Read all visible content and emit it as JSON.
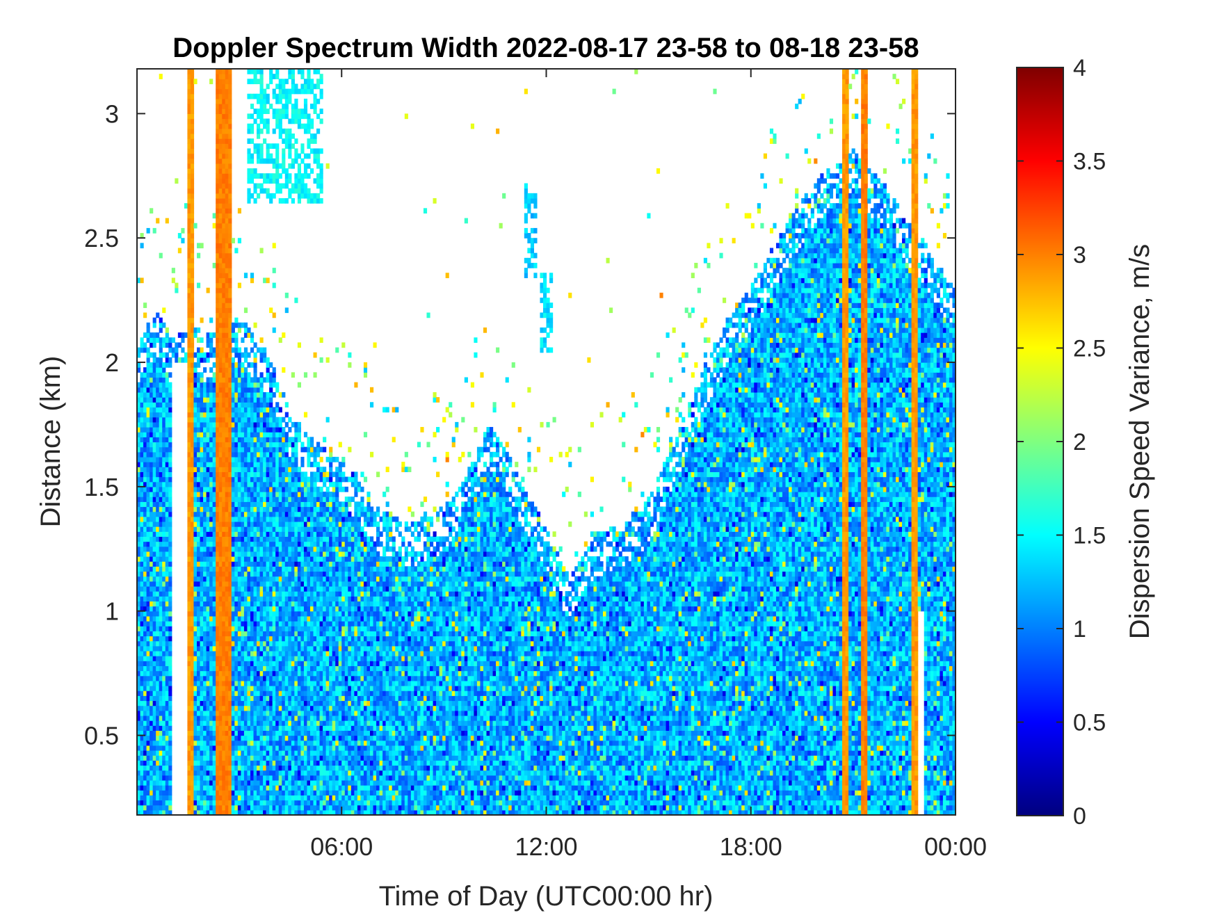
{
  "chart_data": {
    "type": "heatmap",
    "title": "Doppler Spectrum Width 2022-08-17 23-58 to 08-18 23-58",
    "xlabel": "Time of Day (UTC00:00 hr)",
    "ylabel": "Distance (km)",
    "colorbar_label": "Dispersion Speed Variance, m/s",
    "colormap": "jet",
    "x_unit": "hour",
    "xlim": [
      0,
      24
    ],
    "ylim": [
      0.18,
      3.18
    ],
    "clim": [
      0,
      4
    ],
    "x_ticks": [
      6,
      12,
      18,
      24
    ],
    "x_tick_labels": [
      "06:00",
      "12:00",
      "18:00",
      "00:00"
    ],
    "y_ticks": [
      0.5,
      1,
      1.5,
      2,
      2.5,
      3
    ],
    "y_tick_labels": [
      "0.5",
      "1",
      "1.5",
      "2",
      "2.5",
      "3"
    ],
    "colorbar_ticks": [
      0,
      0.5,
      1,
      1.5,
      2,
      2.5,
      3,
      3.5,
      4
    ],
    "colorbar_tick_labels": [
      "0",
      "0.5",
      "1",
      "1.5",
      "2",
      "2.5",
      "3",
      "3.5",
      "4"
    ],
    "data_top_profile_km": [
      {
        "x": 0.0,
        "y": 2.05
      },
      {
        "x": 0.3,
        "y": 2.15
      },
      {
        "x": 0.6,
        "y": 2.2
      },
      {
        "x": 1.0,
        "y": 2.1
      },
      {
        "x": 1.7,
        "y": 2.15
      },
      {
        "x": 2.0,
        "y": 2.1
      },
      {
        "x": 2.6,
        "y": 2.2
      },
      {
        "x": 3.2,
        "y": 2.15
      },
      {
        "x": 3.8,
        "y": 2.05
      },
      {
        "x": 4.5,
        "y": 1.8
      },
      {
        "x": 5.5,
        "y": 1.65
      },
      {
        "x": 6.5,
        "y": 1.55
      },
      {
        "x": 7.2,
        "y": 1.4
      },
      {
        "x": 8.0,
        "y": 1.35
      },
      {
        "x": 8.8,
        "y": 1.4
      },
      {
        "x": 9.5,
        "y": 1.5
      },
      {
        "x": 10.3,
        "y": 1.75
      },
      {
        "x": 11.0,
        "y": 1.6
      },
      {
        "x": 11.8,
        "y": 1.4
      },
      {
        "x": 12.6,
        "y": 1.15
      },
      {
        "x": 13.3,
        "y": 1.3
      },
      {
        "x": 14.2,
        "y": 1.35
      },
      {
        "x": 15.0,
        "y": 1.45
      },
      {
        "x": 15.8,
        "y": 1.7
      },
      {
        "x": 16.5,
        "y": 1.95
      },
      {
        "x": 17.2,
        "y": 2.15
      },
      {
        "x": 18.0,
        "y": 2.3
      },
      {
        "x": 19.0,
        "y": 2.55
      },
      {
        "x": 20.0,
        "y": 2.75
      },
      {
        "x": 21.0,
        "y": 2.85
      },
      {
        "x": 22.0,
        "y": 2.7
      },
      {
        "x": 23.0,
        "y": 2.5
      },
      {
        "x": 24.0,
        "y": 2.3
      }
    ],
    "high_variance_bands": [
      {
        "x_start": 1.45,
        "x_end": 1.7,
        "value": 2.9
      },
      {
        "x_start": 2.35,
        "x_end": 2.75,
        "value": 3.0
      },
      {
        "x_start": 20.7,
        "x_end": 20.85,
        "value": 2.9
      },
      {
        "x_start": 21.25,
        "x_end": 21.45,
        "value": 3.0
      },
      {
        "x_start": 22.7,
        "x_end": 22.85,
        "value": 2.9
      }
    ],
    "empty_gaps": [
      {
        "x_start": 1.0,
        "x_end": 1.45,
        "y_max": 2.0
      },
      {
        "x_start": 22.9,
        "x_end": 23.05,
        "y_max": 1.0
      }
    ],
    "upper_patches": [
      {
        "x_start": 3.2,
        "x_end": 5.4,
        "y_min": 2.65,
        "y_max": 3.18,
        "value": 1.5
      },
      {
        "x_start": 11.4,
        "x_end": 11.7,
        "y_min": 2.35,
        "y_max": 2.72,
        "value": 1.3
      },
      {
        "x_start": 11.8,
        "x_end": 12.2,
        "y_min": 2.05,
        "y_max": 2.35,
        "value": 1.4
      }
    ],
    "typical_value_range": [
      0.8,
      1.6
    ]
  }
}
